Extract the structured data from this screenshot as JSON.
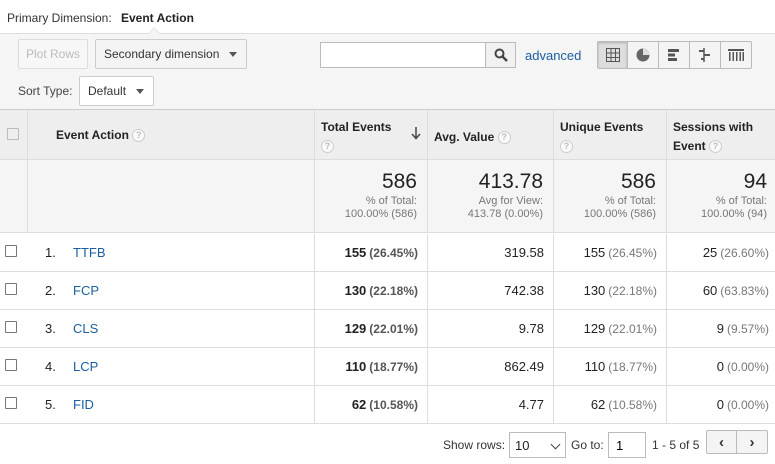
{
  "primary_dimension": {
    "label": "Primary Dimension:",
    "value": "Event Action"
  },
  "toolbar": {
    "plot_rows": "Plot Rows",
    "secondary_dimension": "Secondary dimension",
    "search_value": "",
    "advanced": "advanced",
    "sort_type_label": "Sort Type:",
    "sort_type_value": "Default",
    "views": [
      "table-view-icon",
      "pie-view-icon",
      "bar-view-icon",
      "comparison-view-icon",
      "pivot-view-icon"
    ],
    "active_view": "table-view-icon"
  },
  "table": {
    "headers": {
      "dimension": "Event Action",
      "total_events": "Total Events",
      "avg_value": "Avg. Value",
      "unique_events": "Unique Events",
      "sessions_with_event": "Sessions with Event"
    },
    "help_glyph": "?",
    "totals": {
      "total_events": {
        "value": "586",
        "sub1": "% of Total:",
        "sub2": "100.00% (586)"
      },
      "avg_value": {
        "value": "413.78",
        "sub1": "Avg for View:",
        "sub2": "413.78 (0.00%)"
      },
      "unique_events": {
        "value": "586",
        "sub1": "% of Total:",
        "sub2": "100.00% (586)"
      },
      "sessions_with_event": {
        "value": "94",
        "sub1": "% of Total:",
        "sub2": "100.00% (94)"
      }
    },
    "rows": [
      {
        "rank": "1.",
        "action": "TTFB",
        "total": "155",
        "total_pct": "(26.45%)",
        "avg": "319.58",
        "unique": "155",
        "unique_pct": "(26.45%)",
        "sessions": "25",
        "sessions_pct": "(26.60%)"
      },
      {
        "rank": "2.",
        "action": "FCP",
        "total": "130",
        "total_pct": "(22.18%)",
        "avg": "742.38",
        "unique": "130",
        "unique_pct": "(22.18%)",
        "sessions": "60",
        "sessions_pct": "(63.83%)"
      },
      {
        "rank": "3.",
        "action": "CLS",
        "total": "129",
        "total_pct": "(22.01%)",
        "avg": "9.78",
        "unique": "129",
        "unique_pct": "(22.01%)",
        "sessions": "9",
        "sessions_pct": "(9.57%)"
      },
      {
        "rank": "4.",
        "action": "LCP",
        "total": "110",
        "total_pct": "(18.77%)",
        "avg": "862.49",
        "unique": "110",
        "unique_pct": "(18.77%)",
        "sessions": "0",
        "sessions_pct": "(0.00%)"
      },
      {
        "rank": "5.",
        "action": "FID",
        "total": "62",
        "total_pct": "(10.58%)",
        "avg": "4.77",
        "unique": "62",
        "unique_pct": "(10.58%)",
        "sessions": "0",
        "sessions_pct": "(0.00%)"
      }
    ]
  },
  "footer": {
    "show_rows_label": "Show rows:",
    "show_rows_value": "10",
    "goto_label": "Go to:",
    "goto_value": "1",
    "range": "1 - 5 of 5",
    "prev": "‹",
    "next": "›"
  }
}
